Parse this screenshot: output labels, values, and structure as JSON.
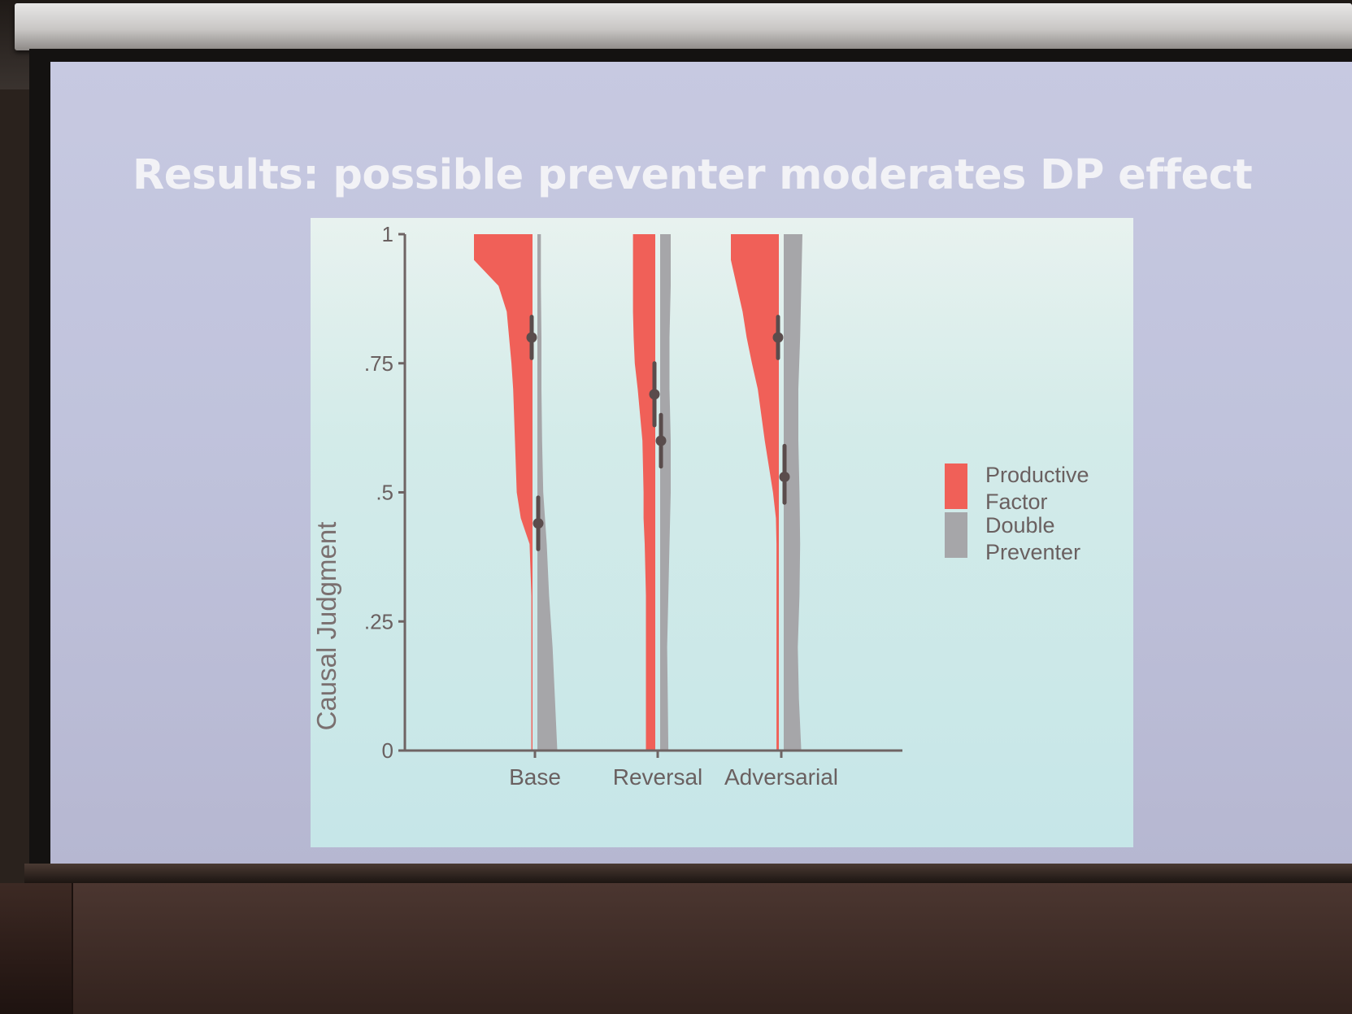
{
  "slide": {
    "title": "Results: possible preventer moderates DP effect"
  },
  "colors": {
    "productive": "#f06058",
    "double_preventer": "#a6a6a9",
    "point": "#5a4c4c",
    "axis": "#6f6464"
  },
  "chart_data": {
    "type": "violin",
    "ylabel": "Causal Judgment",
    "xlabel": "",
    "ylim": [
      0,
      1
    ],
    "ytick_labels": [
      "0",
      ".25",
      ".5",
      ".75",
      "1"
    ],
    "ytick_values": [
      0,
      0.25,
      0.5,
      0.75,
      1
    ],
    "categories": [
      "Base",
      "Reversal",
      "Adversarial"
    ],
    "legend_position": "right",
    "series": [
      {
        "name": "Productive Factor",
        "side": "left",
        "means": [
          0.8,
          0.69,
          0.8
        ],
        "ci_low": [
          0.76,
          0.63,
          0.76
        ],
        "ci_high": [
          0.84,
          0.75,
          0.84
        ],
        "density_y": [
          0,
          0.1,
          0.2,
          0.3,
          0.4,
          0.45,
          0.5,
          0.6,
          0.7,
          0.75,
          0.8,
          0.85,
          0.9,
          0.95,
          1.0
        ],
        "density": [
          [
            0.02,
            0.02,
            0.02,
            0.02,
            0.05,
            0.2,
            0.27,
            0.3,
            0.33,
            0.36,
            0.4,
            0.44,
            0.58,
            1.0,
            1.0
          ],
          [
            0.16,
            0.16,
            0.16,
            0.16,
            0.18,
            0.2,
            0.2,
            0.22,
            0.3,
            0.35,
            0.37,
            0.38,
            0.38,
            0.38,
            0.38
          ],
          [
            0.04,
            0.04,
            0.04,
            0.04,
            0.04,
            0.05,
            0.1,
            0.24,
            0.36,
            0.46,
            0.55,
            0.62,
            0.72,
            0.82,
            0.82
          ]
        ]
      },
      {
        "name": "Double Preventer",
        "side": "right",
        "means": [
          0.44,
          0.6,
          0.53
        ],
        "ci_low": [
          0.39,
          0.55,
          0.48
        ],
        "ci_high": [
          0.49,
          0.65,
          0.59
        ],
        "density_y": [
          0,
          0.1,
          0.2,
          0.3,
          0.4,
          0.5,
          0.6,
          0.7,
          0.8,
          0.9,
          1.0
        ],
        "density": [
          [
            0.34,
            0.3,
            0.26,
            0.2,
            0.16,
            0.1,
            0.08,
            0.07,
            0.07,
            0.06,
            0.06
          ],
          [
            0.14,
            0.13,
            0.12,
            0.14,
            0.16,
            0.18,
            0.18,
            0.16,
            0.16,
            0.18,
            0.18
          ],
          [
            0.3,
            0.26,
            0.24,
            0.27,
            0.28,
            0.27,
            0.25,
            0.25,
            0.28,
            0.3,
            0.32
          ]
        ]
      }
    ]
  },
  "legend": {
    "items": [
      {
        "line1": "Productive",
        "line2": "Factor"
      },
      {
        "line1": "Double",
        "line2": "Preventer"
      }
    ]
  }
}
